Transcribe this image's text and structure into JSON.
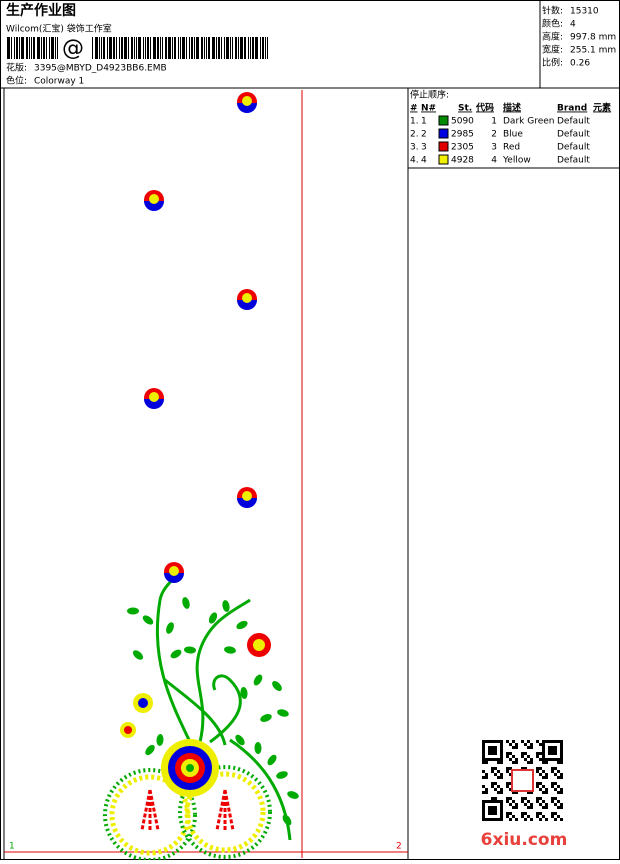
{
  "header": {
    "title": "生产作业图",
    "software": "Wilcom(汇宝) 袋饰工作室",
    "barcode_symbol": "@",
    "design_label": "花版:",
    "design": "3395@MBYD_D4923BB6.EMB",
    "colorway_label": "色位:",
    "colorway": "Colorway 1"
  },
  "stats": [
    {
      "label": "针数:",
      "value": "15310"
    },
    {
      "label": "颜色:",
      "value": "4"
    },
    {
      "label": "高度:",
      "value": "997.8 mm"
    },
    {
      "label": "宽度:",
      "value": "255.1 mm"
    },
    {
      "label": "比例:",
      "value": "0.26"
    }
  ],
  "sequence": {
    "title": "停止顺序:",
    "headers": [
      "#",
      "N#",
      "St.",
      "代码",
      "描述",
      "Brand",
      "元素"
    ],
    "rows": [
      {
        "index": "1.",
        "needle": "1",
        "color": "#008c00",
        "stitch": "5090",
        "code": "1",
        "description": "Dark Green",
        "brand": "Default"
      },
      {
        "index": "2.",
        "needle": "2",
        "color": "#0000e0",
        "stitch": "2985",
        "code": "2",
        "description": "Blue",
        "brand": "Default"
      },
      {
        "index": "3.",
        "needle": "3",
        "color": "#e00000",
        "stitch": "2305",
        "code": "3",
        "description": "Red",
        "brand": "Default"
      },
      {
        "index": "4.",
        "needle": "4",
        "color": "#f0f000",
        "stitch": "4928",
        "code": "4",
        "description": "Yellow",
        "brand": "Default"
      }
    ]
  },
  "markers": [
    "1",
    "2"
  ],
  "watermark": "6xiu.com"
}
